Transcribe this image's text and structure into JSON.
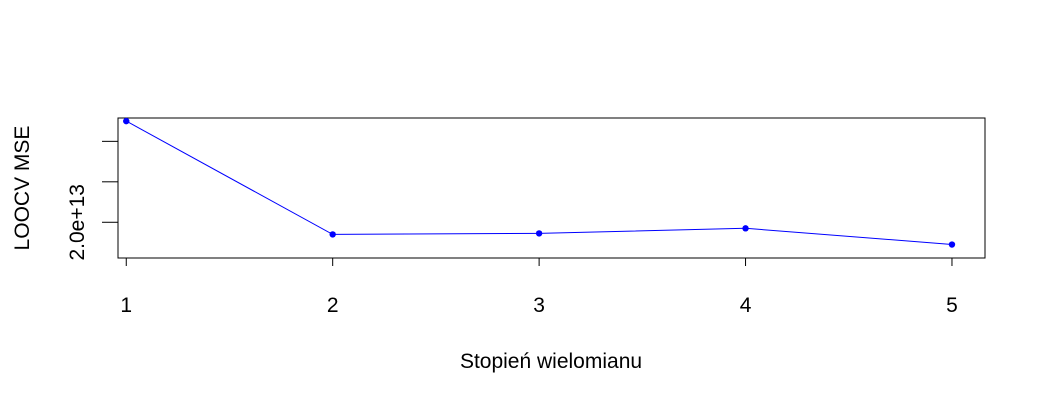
{
  "chart_data": {
    "type": "line",
    "xlabel": "Stopień wielomianu",
    "ylabel": "LOOCV MSE",
    "x": [
      1,
      2,
      3,
      4,
      5
    ],
    "x_tick_labels": [
      "1",
      "2",
      "3",
      "4",
      "5"
    ],
    "y_tick_labels": [
      "2.0e+13",
      "",
      ""
    ],
    "y_ticks": [
      20000000000000.0,
      22000000000000.0,
      24000000000000.0
    ],
    "xlim": [
      0.96,
      5.16
    ],
    "ylim": [
      18234000000000.0,
      25154000000000.0
    ],
    "series": [
      {
        "values": [
          25000000000000.0,
          19400000000000.0,
          19450000000000.0,
          19700000000000.0,
          18900000000000.0
        ]
      }
    ],
    "grid": false,
    "box": true,
    "colors": {
      "line": "#0000ff",
      "points": "#0000ff"
    }
  }
}
